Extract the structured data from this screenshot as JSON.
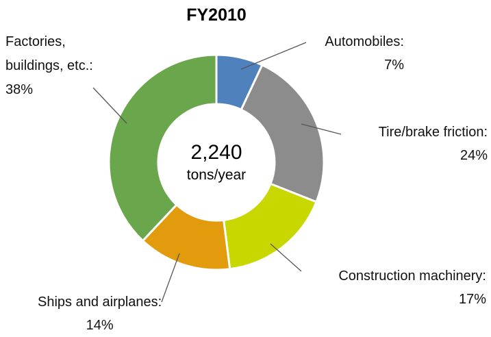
{
  "chart_data": {
    "type": "donut",
    "title": "FY2010",
    "categories": [
      "Automobiles:",
      "Tire/brake friction:",
      "Construction machinery:",
      "Ships and airplanes:",
      "Factories, buildings, etc.:"
    ],
    "values": [
      7,
      24,
      17,
      14,
      38
    ],
    "value_labels": [
      "7%",
      "24%",
      "17%",
      "14%",
      "38%"
    ],
    "colors": [
      "#4f81bd",
      "#8c8c8c",
      "#c9d700",
      "#e39b0e",
      "#6aa64b"
    ],
    "center_label": "2,240",
    "center_unit": "tons/year"
  }
}
